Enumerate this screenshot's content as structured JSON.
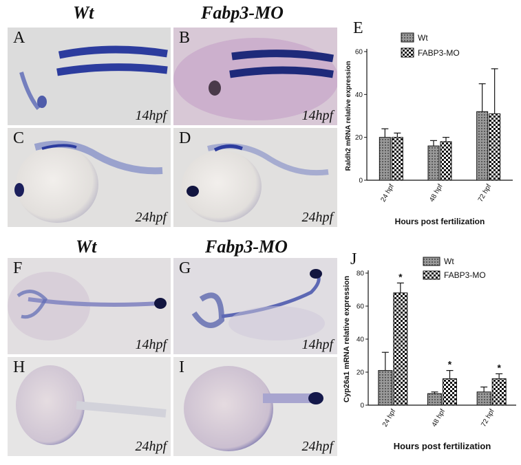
{
  "top": {
    "col1": "Wt",
    "col2": "Fabp3-MO",
    "panels": [
      {
        "letter": "A",
        "stage": "14hpf"
      },
      {
        "letter": "B",
        "stage": "14hpf"
      },
      {
        "letter": "C",
        "stage": "24hpf"
      },
      {
        "letter": "D",
        "stage": "24hpf"
      }
    ]
  },
  "bottom": {
    "col1": "Wt",
    "col2": "Fabp3-MO",
    "panels": [
      {
        "letter": "F",
        "stage": "14hpf"
      },
      {
        "letter": "G",
        "stage": "14hpf"
      },
      {
        "letter": "H",
        "stage": "24hpf"
      },
      {
        "letter": "I",
        "stage": "24hpf"
      }
    ]
  },
  "colors": {
    "bg": "#ffffff",
    "panel": "#dcdad8",
    "stain": "#2f3f9a",
    "stain_dark": "#1b1f5c",
    "bar_fill": "#8a8a8a"
  },
  "chart_data": [
    {
      "letter": "E",
      "type": "bar",
      "categories": [
        "24 hpf",
        "48 hpf",
        "72 hpf"
      ],
      "series": [
        {
          "name": "Wt",
          "values": [
            20,
            16,
            32
          ],
          "errors": [
            4,
            2.5,
            13
          ]
        },
        {
          "name": "FABP3-MO",
          "values": [
            20,
            18,
            31
          ],
          "errors": [
            2,
            2,
            21
          ]
        }
      ],
      "ylabel": "Raldh2 mRNA relative expression",
      "xlabel": "Hours post fertilization",
      "ylim": [
        0,
        60
      ],
      "yticks": [
        0,
        20,
        40,
        60
      ],
      "significance": [
        "",
        "",
        ""
      ],
      "legend": "top-center",
      "grid": false
    },
    {
      "letter": "J",
      "type": "bar",
      "categories": [
        "24 hpf",
        "48 hpf",
        "72 hpf"
      ],
      "series": [
        {
          "name": "Wt",
          "values": [
            21,
            7,
            8
          ],
          "errors": [
            11,
            1,
            3
          ]
        },
        {
          "name": "FABP3-MO",
          "values": [
            68,
            16,
            16
          ],
          "errors": [
            6,
            5,
            3
          ]
        }
      ],
      "ylabel": "Cyp26a1 mRNA relative expression",
      "xlabel": "Hours post fertilization",
      "ylim": [
        0,
        80
      ],
      "yticks": [
        0,
        20,
        40,
        60,
        80
      ],
      "significance": [
        "*",
        "*",
        "*"
      ],
      "legend": "top-center",
      "grid": false
    }
  ]
}
